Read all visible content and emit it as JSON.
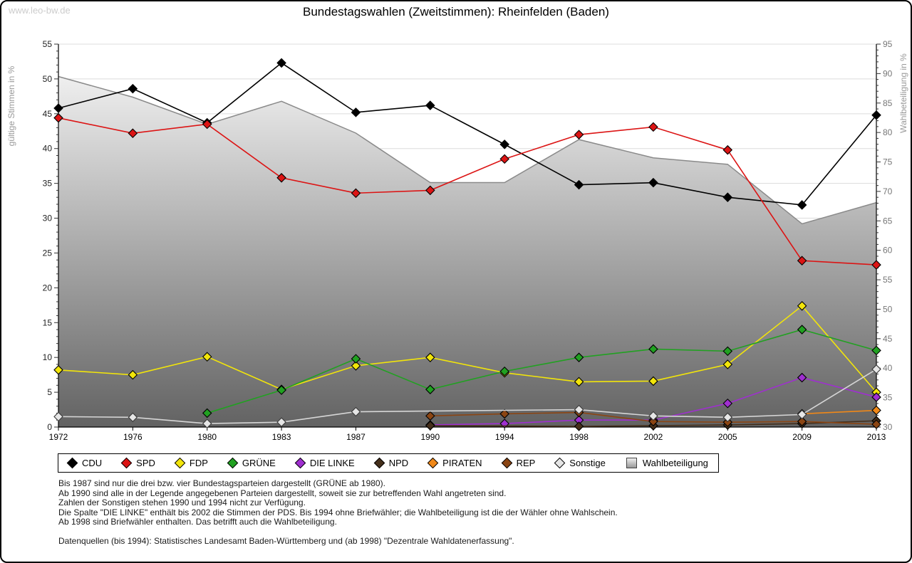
{
  "watermark": "www.leo-bw.de",
  "title": "Bundestagswahlen (Zweitstimmen): Rheinfelden (Baden)",
  "chart_data": {
    "type": "line",
    "title": "Bundestagswahlen (Zweitstimmen): Rheinfelden (Baden)",
    "categories": [
      "1972",
      "1976",
      "1980",
      "1983",
      "1987",
      "1990",
      "1994",
      "1998",
      "2002",
      "2005",
      "2009",
      "2013"
    ],
    "ylabel_left": "gültige Stimmen in %",
    "ylabel_right": "Wahlbeteiligung in %",
    "ylim_left": [
      0,
      55
    ],
    "ylim_right": [
      30,
      95
    ],
    "left_ticks": [
      0,
      5,
      10,
      15,
      20,
      25,
      30,
      35,
      40,
      45,
      50,
      55
    ],
    "right_ticks": [
      30,
      35,
      40,
      45,
      50,
      55,
      60,
      65,
      70,
      75,
      80,
      85,
      90,
      95
    ],
    "grid": true,
    "legend_position": "bottom",
    "series": [
      {
        "name": "CDU",
        "color": "#000000",
        "axis": "left",
        "marker": "diamond",
        "values": [
          45.8,
          48.6,
          43.7,
          52.3,
          45.2,
          46.2,
          40.6,
          34.8,
          35.1,
          33.0,
          31.9,
          44.8
        ]
      },
      {
        "name": "SPD",
        "color": "#dc1414",
        "axis": "left",
        "marker": "diamond",
        "values": [
          44.4,
          42.2,
          43.5,
          35.8,
          33.6,
          34.0,
          38.5,
          42.0,
          43.1,
          39.8,
          23.9,
          23.3
        ]
      },
      {
        "name": "FDP",
        "color": "#f2e50a",
        "axis": "left",
        "marker": "diamond",
        "values": [
          8.2,
          7.5,
          10.1,
          5.4,
          8.8,
          10.0,
          7.8,
          6.5,
          6.6,
          9.0,
          17.4,
          5.0
        ]
      },
      {
        "name": "GRÜNE",
        "color": "#21a121",
        "axis": "left",
        "marker": "diamond",
        "values": [
          null,
          null,
          2.0,
          5.3,
          9.8,
          5.4,
          8.0,
          10.0,
          11.2,
          10.9,
          14.0,
          11.0
        ]
      },
      {
        "name": "DIE LINKE",
        "color": "#9f2fd0",
        "axis": "left",
        "marker": "diamond",
        "values": [
          null,
          null,
          null,
          null,
          null,
          0.3,
          0.5,
          1.0,
          1.0,
          3.4,
          7.1,
          4.3
        ]
      },
      {
        "name": "NPD",
        "color": "#452f1b",
        "axis": "left",
        "marker": "diamond",
        "values": [
          null,
          null,
          null,
          null,
          null,
          0.2,
          null,
          0.1,
          0.2,
          0.3,
          0.5,
          0.9
        ]
      },
      {
        "name": "PIRATEN",
        "color": "#f08818",
        "axis": "left",
        "marker": "diamond",
        "values": [
          null,
          null,
          null,
          null,
          null,
          null,
          null,
          null,
          null,
          null,
          1.9,
          2.4
        ]
      },
      {
        "name": "REP",
        "color": "#8b4513",
        "axis": "left",
        "marker": "diamond",
        "values": [
          null,
          null,
          null,
          null,
          null,
          1.6,
          1.9,
          2.1,
          0.8,
          0.7,
          0.8,
          0.4
        ]
      },
      {
        "name": "Sonstige",
        "color": "#d6d6d6",
        "axis": "left",
        "marker": "diamond",
        "marker_fill": "#e6e6e6",
        "marker_stroke": "#3a3a3a",
        "values": [
          1.5,
          1.4,
          0.5,
          0.7,
          2.2,
          null,
          null,
          2.5,
          1.6,
          1.4,
          1.8,
          8.3
        ]
      },
      {
        "name": "Wahlbeteiligung",
        "color": "#8a8a8a",
        "axis": "right",
        "marker": "square",
        "type": "area",
        "values": [
          89.5,
          86.0,
          81.4,
          85.3,
          79.9,
          71.5,
          71.5,
          78.8,
          75.7,
          74.6,
          64.5,
          68.1
        ]
      }
    ]
  },
  "footer": {
    "lines": [
      "Bis 1987 sind nur die drei bzw. vier Bundestagsparteien dargestellt (GRÜNE ab 1980).",
      "Ab 1990 sind alle in der Legende angegebenen Parteien dargestellt, soweit sie zur betreffenden Wahl angetreten sind.",
      "Zahlen der Sonstigen stehen 1990 und 1994 nicht zur Verfügung.",
      "Die Spalte \"DIE LINKE\" enthält bis 2002 die Stimmen der PDS. Bis 1994 ohne Briefwähler; die Wahlbeteiligung ist die der Wähler ohne Wahlschein.",
      "Ab 1998 sind Briefwähler enthalten. Das betrifft auch die Wahlbeteiligung."
    ],
    "source": "Datenquellen (bis 1994): Statistisches Landesamt Baden-Württemberg und (ab 1998) \"Dezentrale Wahldatenerfassung\"."
  }
}
